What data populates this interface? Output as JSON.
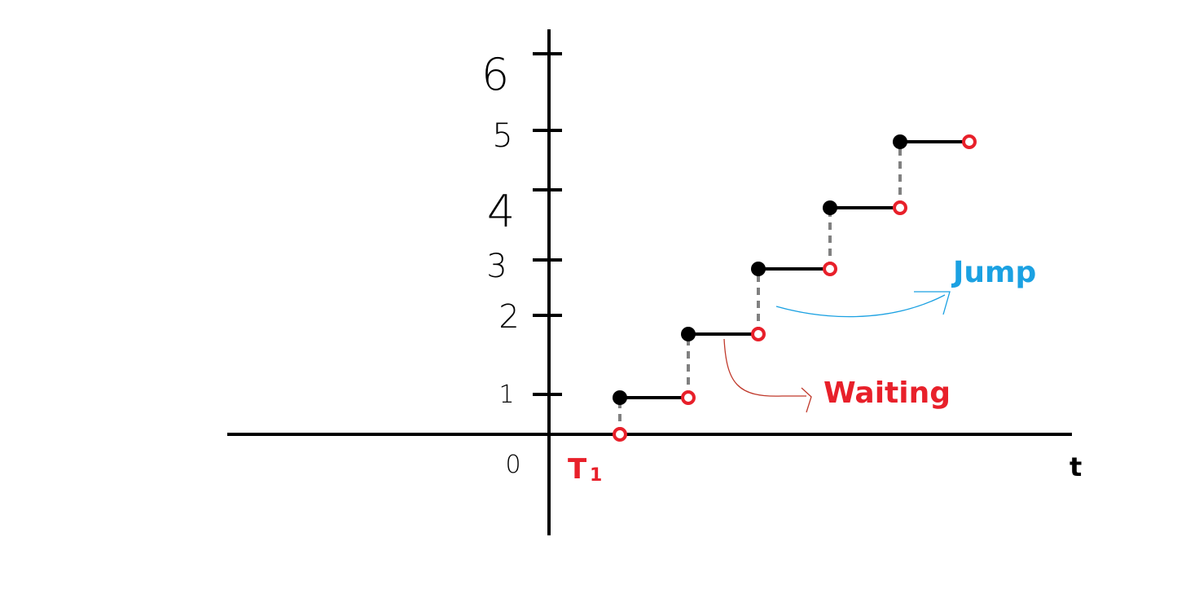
{
  "axes": {
    "x_label": "t",
    "y_tick_labels": [
      "0",
      "1",
      "2",
      "3",
      "4",
      "5",
      "6"
    ],
    "t1_label": "T",
    "t1_subscript": "1"
  },
  "annotations": {
    "jump": {
      "text": "Jump",
      "color": "#1ba1e2"
    },
    "waiting": {
      "text": "Waiting",
      "color": "#e8202a"
    }
  },
  "colors": {
    "axis": "#000000",
    "step_segment": "#000000",
    "jump_dash": "#808080",
    "closed_point": "#000000",
    "open_point": "#e8202a",
    "t1_label": "#e8202a"
  },
  "steps": [
    {
      "level": 0,
      "from": 0,
      "to": 1
    },
    {
      "level": 1,
      "from": 1,
      "to": 2
    },
    {
      "level": 2,
      "from": 2,
      "to": 3
    },
    {
      "level": 3,
      "from": 3,
      "to": 4
    },
    {
      "level": 4,
      "from": 4,
      "to": 5
    },
    {
      "level": 5,
      "from": 5,
      "to": 6
    }
  ]
}
